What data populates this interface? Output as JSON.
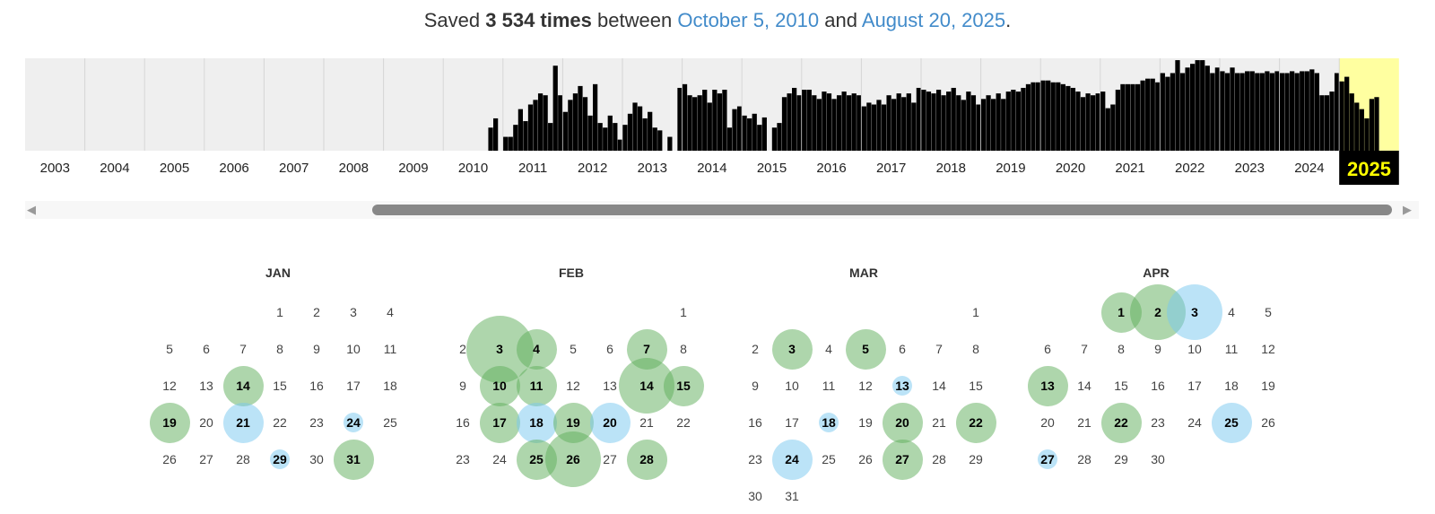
{
  "summary": {
    "prefix": "Saved",
    "count": "3 534 times",
    "between": "between",
    "from_date": "October 5, 2010",
    "and": "and",
    "to_date": "August 20, 2025",
    "end": "."
  },
  "timeline": {
    "years": [
      "2003",
      "2004",
      "2005",
      "2006",
      "2007",
      "2008",
      "2009",
      "2010",
      "2011",
      "2012",
      "2013",
      "2014",
      "2015",
      "2016",
      "2017",
      "2018",
      "2019",
      "2020",
      "2021",
      "2022",
      "2023",
      "2024",
      "2025"
    ],
    "selected_year": "2025",
    "selected_color": "#ffffa0",
    "monthly_levels": {
      "2010": [
        0,
        0,
        0,
        0,
        0,
        0,
        0,
        0,
        0,
        0.25,
        0.35,
        0
      ],
      "2011": [
        0.15,
        0.15,
        0.28,
        0.45,
        0.32,
        0.5,
        0.55,
        0.62,
        0.6,
        0.3,
        0.92,
        0.6
      ],
      "2012": [
        0.42,
        0.55,
        0.62,
        0.7,
        0.58,
        0.38,
        0.72,
        0.3,
        0.25,
        0.38,
        0.3,
        0.12
      ],
      "2013": [
        0.28,
        0.4,
        0.52,
        0.48,
        0.35,
        0.42,
        0.25,
        0.22,
        0.0,
        0.15,
        0.0,
        0.68
      ],
      "2014": [
        0.72,
        0.6,
        0.58,
        0.6,
        0.66,
        0.52,
        0.66,
        0.62,
        0.66,
        0.25,
        0.45,
        0.48
      ],
      "2015": [
        0.38,
        0.35,
        0.4,
        0.28,
        0.36,
        0.0,
        0.25,
        0.3,
        0.58,
        0.62,
        0.68,
        0.6
      ],
      "2016": [
        0.66,
        0.66,
        0.6,
        0.56,
        0.64,
        0.62,
        0.56,
        0.6,
        0.64,
        0.6,
        0.62,
        0.6
      ],
      "2017": [
        0.48,
        0.52,
        0.5,
        0.55,
        0.5,
        0.6,
        0.56,
        0.62,
        0.58,
        0.62,
        0.52,
        0.68
      ],
      "2018": [
        0.66,
        0.64,
        0.62,
        0.66,
        0.6,
        0.64,
        0.68,
        0.6,
        0.55,
        0.64,
        0.6,
        0.5
      ],
      "2019": [
        0.56,
        0.6,
        0.56,
        0.62,
        0.56,
        0.64,
        0.66,
        0.64,
        0.68,
        0.72,
        0.74,
        0.74
      ],
      "2020": [
        0.76,
        0.76,
        0.74,
        0.74,
        0.72,
        0.7,
        0.68,
        0.64,
        0.58,
        0.62,
        0.6,
        0.62
      ],
      "2021": [
        0.64,
        0.46,
        0.5,
        0.66,
        0.72,
        0.72,
        0.72,
        0.72,
        0.76,
        0.78,
        0.78,
        0.74
      ],
      "2022": [
        0.84,
        0.8,
        0.84,
        0.98,
        0.84,
        0.9,
        0.94,
        0.98,
        0.98,
        0.92,
        0.84,
        0.9
      ],
      "2023": [
        0.86,
        0.84,
        0.9,
        0.84,
        0.84,
        0.86,
        0.86,
        0.84,
        0.84,
        0.86,
        0.84,
        0.86
      ],
      "2024": [
        0.84,
        0.84,
        0.86,
        0.84,
        0.86,
        0.86,
        0.88,
        0.84,
        0.6,
        0.6,
        0.64,
        0.84
      ],
      "2025": [
        0.75,
        0.8,
        0.62,
        0.52,
        0.45,
        0.35,
        0.56,
        0.58
      ]
    }
  },
  "calendar": {
    "months": [
      {
        "name": "JAN",
        "start_weekday": 3,
        "days_in_month": 31,
        "captures": [
          {
            "day": 14,
            "level": 0.45,
            "color": "green"
          },
          {
            "day": 19,
            "level": 0.45,
            "color": "green"
          },
          {
            "day": 21,
            "level": 0.45,
            "color": "blue"
          },
          {
            "day": 24,
            "level": 0.22,
            "color": "blue"
          },
          {
            "day": 29,
            "level": 0.22,
            "color": "blue"
          },
          {
            "day": 31,
            "level": 0.45,
            "color": "green"
          }
        ]
      },
      {
        "name": "FEB",
        "start_weekday": 6,
        "days_in_month": 28,
        "captures": [
          {
            "day": 3,
            "level": 0.75,
            "color": "green"
          },
          {
            "day": 4,
            "level": 0.45,
            "color": "green"
          },
          {
            "day": 7,
            "level": 0.45,
            "color": "green"
          },
          {
            "day": 10,
            "level": 0.45,
            "color": "green"
          },
          {
            "day": 11,
            "level": 0.45,
            "color": "green"
          },
          {
            "day": 14,
            "level": 0.62,
            "color": "green"
          },
          {
            "day": 15,
            "level": 0.45,
            "color": "green"
          },
          {
            "day": 17,
            "level": 0.45,
            "color": "green"
          },
          {
            "day": 18,
            "level": 0.45,
            "color": "blue"
          },
          {
            "day": 19,
            "level": 0.45,
            "color": "green"
          },
          {
            "day": 20,
            "level": 0.45,
            "color": "blue"
          },
          {
            "day": 25,
            "level": 0.45,
            "color": "green"
          },
          {
            "day": 26,
            "level": 0.62,
            "color": "green"
          },
          {
            "day": 28,
            "level": 0.45,
            "color": "green"
          }
        ]
      },
      {
        "name": "MAR",
        "start_weekday": 6,
        "days_in_month": 31,
        "captures": [
          {
            "day": 3,
            "level": 0.45,
            "color": "green"
          },
          {
            "day": 5,
            "level": 0.45,
            "color": "green"
          },
          {
            "day": 13,
            "level": 0.22,
            "color": "blue"
          },
          {
            "day": 18,
            "level": 0.22,
            "color": "blue"
          },
          {
            "day": 20,
            "level": 0.45,
            "color": "green"
          },
          {
            "day": 22,
            "level": 0.45,
            "color": "green"
          },
          {
            "day": 24,
            "level": 0.45,
            "color": "blue"
          },
          {
            "day": 27,
            "level": 0.45,
            "color": "green"
          }
        ]
      },
      {
        "name": "APR",
        "start_weekday": 2,
        "days_in_month": 30,
        "captures": [
          {
            "day": 1,
            "level": 0.45,
            "color": "green"
          },
          {
            "day": 2,
            "level": 0.62,
            "color": "green"
          },
          {
            "day": 3,
            "level": 0.62,
            "color": "blue"
          },
          {
            "day": 13,
            "level": 0.45,
            "color": "green"
          },
          {
            "day": 22,
            "level": 0.45,
            "color": "green"
          },
          {
            "day": 25,
            "level": 0.45,
            "color": "blue"
          },
          {
            "day": 27,
            "level": 0.22,
            "color": "blue"
          }
        ]
      }
    ]
  }
}
